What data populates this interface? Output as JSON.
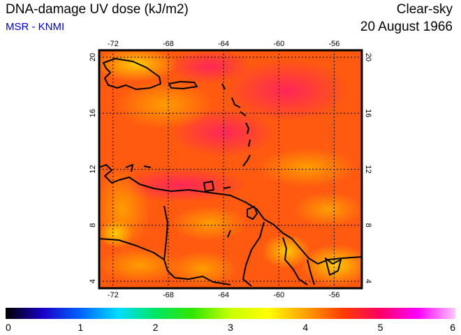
{
  "header": {
    "title": "DNA-damage UV dose (kJ/m2)",
    "source": "MSR - KNMI",
    "condition": "Clear-sky",
    "date": "20 August 1966"
  },
  "colors": {
    "title": "#000000",
    "source": "#0000cc",
    "field_base": "#ff5a10",
    "field_high": "#ff2a5a",
    "field_low": "#ffa000"
  },
  "map": {
    "lon_range": [
      -73,
      -54
    ],
    "lat_range": [
      3.5,
      20.5
    ],
    "lon_ticks": [
      -72,
      -68,
      -64,
      -60,
      -56
    ],
    "lat_ticks": [
      4,
      8,
      12,
      16,
      20
    ],
    "lon_tick_labels": [
      "-72",
      "-68",
      "-64",
      "-60",
      "-56"
    ],
    "lat_tick_labels": [
      "4",
      "8",
      "12",
      "16",
      "20"
    ],
    "grid": "dotted"
  },
  "colorbar": {
    "min": 0,
    "max": 6,
    "tick_labels": [
      "0",
      "1",
      "2",
      "3",
      "4",
      "5",
      "6"
    ],
    "stops": [
      "#000000",
      "#1a00c8",
      "#0064ff",
      "#00dcff",
      "#00e664",
      "#32e600",
      "#c8ff00",
      "#ffff00",
      "#ffa000",
      "#ff3c00",
      "#ff0064",
      "#ff00ff",
      "#ffc8ff"
    ]
  }
}
